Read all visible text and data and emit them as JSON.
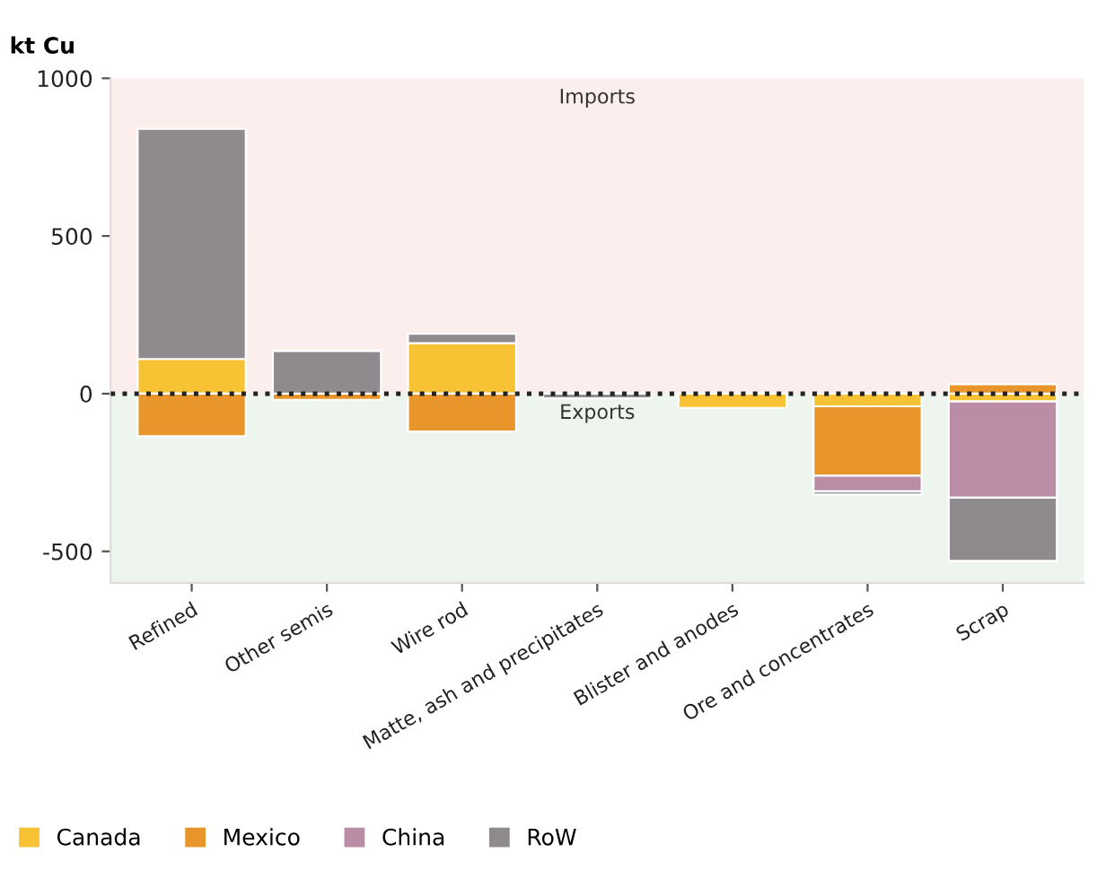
{
  "chart_data": {
    "type": "bar",
    "stacked": true,
    "ylabel": "kt Cu",
    "categories": [
      "Refined",
      "Other semis",
      "Wire rod",
      "Matte, ash and precipitates",
      "Blister and anodes",
      "Ore and concentrates",
      "Scrap"
    ],
    "series": [
      {
        "name": "Canada",
        "color": "#f7c234",
        "values": [
          110,
          0,
          160,
          0,
          -45,
          -40,
          -25
        ]
      },
      {
        "name": "Mexico",
        "color": "#e8962c",
        "values": [
          -135,
          -20,
          -120,
          0,
          0,
          -220,
          30
        ]
      },
      {
        "name": "China",
        "color": "#bb8ca6",
        "values": [
          0,
          0,
          0,
          0,
          0,
          -50,
          -305
        ]
      },
      {
        "name": "RoW",
        "color": "#8e8a8d",
        "values": [
          730,
          135,
          30,
          -15,
          0,
          -10,
          -200
        ]
      }
    ],
    "ylim": [
      -600,
      1000
    ],
    "yticks": [
      {
        "value": -500,
        "label": "-500"
      },
      0,
      500,
      1000
    ],
    "bands": [
      {
        "axis": "y",
        "from": 0,
        "to": 1000,
        "label": "Imports",
        "color": "#fdeeee"
      },
      {
        "axis": "y",
        "from": -600,
        "to": 0,
        "label": "Exports",
        "color": "#eef5ee"
      }
    ],
    "ref_lines": [
      {
        "axis": "y",
        "value": 0,
        "line_style": "dotted",
        "color": "#222222"
      }
    ],
    "legend": "bottom left",
    "grid": false
  }
}
